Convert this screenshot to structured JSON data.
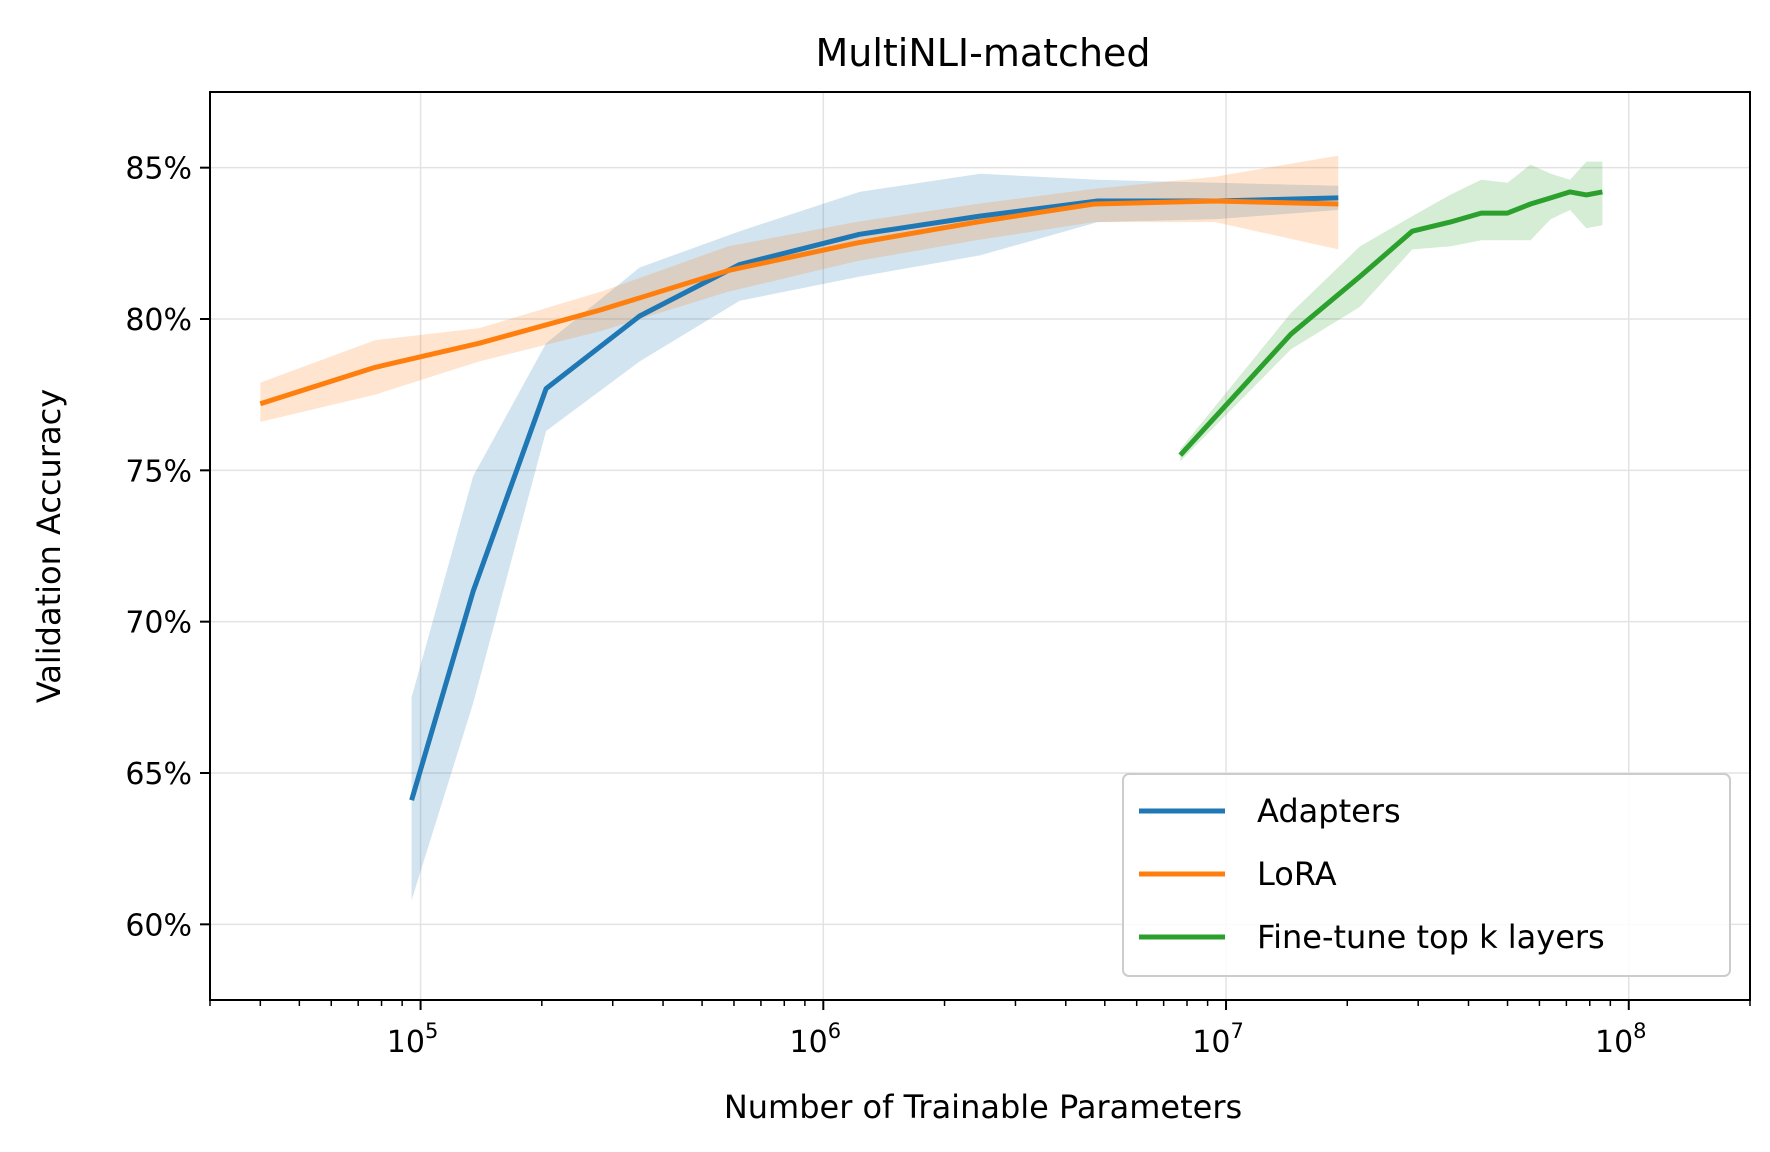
{
  "chart_data": {
    "type": "line",
    "title": "MultiNLI-matched",
    "xlabel": "Number of Trainable Parameters",
    "ylabel": "Validation Accuracy",
    "xscale": "log",
    "xlim": [
      30000,
      200000000
    ],
    "ylim": [
      57.5,
      87.5
    ],
    "x_tick_labels": [
      {
        "value": 100000,
        "base": "10",
        "exp": "5"
      },
      {
        "value": 1000000,
        "base": "10",
        "exp": "6"
      },
      {
        "value": 10000000,
        "base": "10",
        "exp": "7"
      },
      {
        "value": 100000000,
        "base": "10",
        "exp": "8"
      }
    ],
    "y_ticks": [
      {
        "value": 60,
        "label": "60%"
      },
      {
        "value": 65,
        "label": "65%"
      },
      {
        "value": 70,
        "label": "70%"
      },
      {
        "value": 75,
        "label": "75%"
      },
      {
        "value": 80,
        "label": "80%"
      },
      {
        "value": 85,
        "label": "85%"
      }
    ],
    "grid": true,
    "legend_position": "bottom-right",
    "series": [
      {
        "name": "Adapters",
        "color": "#1f77b4",
        "x": [
          95000,
          135000,
          205000,
          350000,
          620000,
          1230000,
          2450000,
          4800000,
          9500000,
          19000000
        ],
        "y": [
          64.1,
          71.0,
          77.7,
          80.1,
          81.8,
          82.8,
          83.4,
          83.9,
          83.9,
          84.0
        ],
        "lower": [
          60.8,
          67.3,
          76.3,
          78.6,
          80.6,
          81.4,
          82.1,
          83.2,
          83.3,
          83.6
        ],
        "upper": [
          67.5,
          74.8,
          79.2,
          81.7,
          82.9,
          84.2,
          84.8,
          84.6,
          84.5,
          84.4
        ]
      },
      {
        "name": "LoRA",
        "color": "#ff7f0e",
        "x": [
          40000,
          77000,
          140000,
          280000,
          580000,
          1200000,
          2400000,
          4700000,
          9400000,
          19000000
        ],
        "y": [
          77.2,
          78.4,
          79.2,
          80.3,
          81.6,
          82.5,
          83.2,
          83.8,
          83.9,
          83.8
        ],
        "lower": [
          76.6,
          77.5,
          78.6,
          79.6,
          80.9,
          81.9,
          82.6,
          83.2,
          83.2,
          82.3
        ],
        "upper": [
          77.9,
          79.3,
          79.7,
          80.9,
          82.4,
          83.2,
          83.8,
          84.3,
          84.7,
          85.4
        ]
      },
      {
        "name": "Fine-tune top k layers",
        "color": "#2ca02c",
        "x": [
          7700000,
          14500000,
          21500000,
          29000000,
          36000000,
          43000000,
          50000000,
          57000000,
          64000000,
          71500000,
          78500000,
          86000000
        ],
        "y": [
          75.5,
          79.5,
          81.4,
          82.9,
          83.2,
          83.5,
          83.5,
          83.8,
          84.0,
          84.2,
          84.1,
          84.2
        ],
        "lower": [
          75.3,
          79.0,
          80.4,
          82.3,
          82.4,
          82.6,
          82.6,
          82.6,
          83.3,
          83.6,
          83.0,
          83.1
        ],
        "upper": [
          75.7,
          80.2,
          82.4,
          83.4,
          84.1,
          84.6,
          84.5,
          85.1,
          84.8,
          84.6,
          85.2,
          85.2
        ]
      }
    ]
  }
}
